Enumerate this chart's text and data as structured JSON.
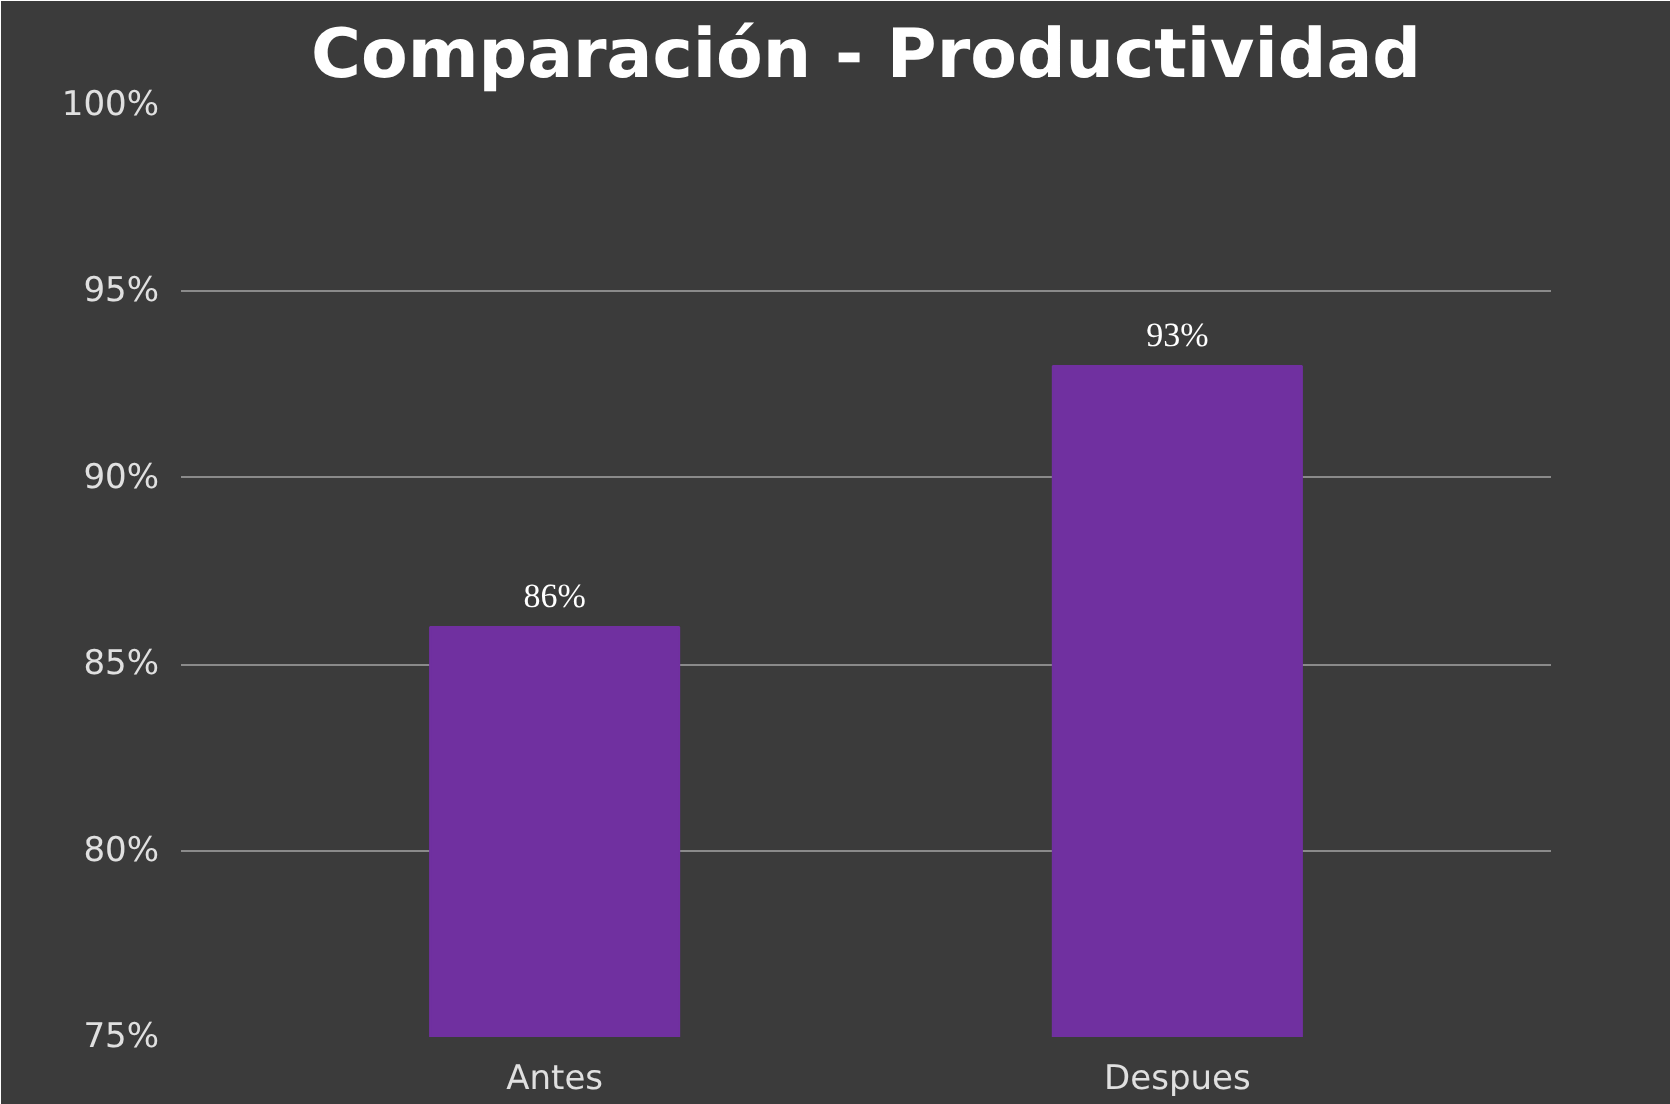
{
  "chart_data": {
    "type": "bar",
    "title": "Comparación - Productividad",
    "categories": [
      "Antes",
      "Despues"
    ],
    "values": [
      86,
      93
    ],
    "color": "#7030a0",
    "value_labels": [
      "86%",
      "93%"
    ],
    "ylim": [
      75,
      100
    ],
    "yticks": [
      {
        "value": 75,
        "label": "75%"
      },
      {
        "value": 80,
        "label": "80%"
      },
      {
        "value": 85,
        "label": "85%"
      },
      {
        "value": 90,
        "label": "90%"
      },
      {
        "value": 95,
        "label": "95%"
      },
      {
        "value": 100,
        "label": "100%"
      }
    ],
    "grid": "y"
  }
}
